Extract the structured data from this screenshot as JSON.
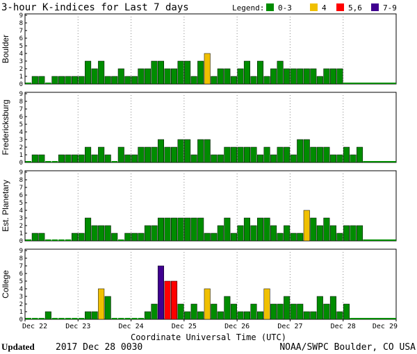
{
  "chart_data": {
    "type": "bar",
    "title": "3-hour K-indices for Last 7 days",
    "legend": {
      "label": "Legend:",
      "placement": "top-right",
      "items": [
        {
          "label": "0-3",
          "color": "#008c00"
        },
        {
          "label": "4",
          "color": "#f0c000"
        },
        {
          "label": "5,6",
          "color": "#ff0000"
        },
        {
          "label": "7-9",
          "color": "#400090"
        }
      ]
    },
    "color_scale": [
      {
        "min": 0,
        "max": 3,
        "color": "#008c00"
      },
      {
        "min": 4,
        "max": 4,
        "color": "#f0c000"
      },
      {
        "min": 5,
        "max": 6,
        "color": "#ff0000"
      },
      {
        "min": 7,
        "max": 9,
        "color": "#400090"
      }
    ],
    "xlabel": "Coordinate Universal Time (UTC)",
    "x_ticks": [
      "Dec 22",
      "Dec 23",
      "Dec 24",
      "Dec 25",
      "Dec 26",
      "Dec 27",
      "Dec 28",
      "Dec 29"
    ],
    "y_ticks": [
      "0",
      "1",
      "2",
      "3",
      "4",
      "5",
      "6",
      "7",
      "8",
      "9"
    ],
    "ylim": [
      0,
      9
    ],
    "intervals_per_day": 8,
    "days": 7,
    "series": [
      {
        "name": "Boulder",
        "values": [
          0,
          1,
          1,
          0,
          1,
          1,
          1,
          1,
          1,
          3,
          2,
          3,
          1,
          1,
          2,
          1,
          1,
          2,
          2,
          3,
          3,
          2,
          2,
          3,
          3,
          1,
          3,
          4,
          1,
          2,
          2,
          1,
          2,
          3,
          1,
          3,
          1,
          2,
          3,
          2,
          2,
          2,
          2,
          2,
          1,
          2,
          2,
          2,
          null,
          null,
          null,
          null,
          null,
          null,
          null,
          null
        ]
      },
      {
        "name": "Fredericksburg",
        "values": [
          0,
          1,
          1,
          0,
          0,
          1,
          1,
          1,
          1,
          2,
          1,
          2,
          1,
          0,
          2,
          1,
          1,
          2,
          2,
          2,
          3,
          2,
          2,
          3,
          3,
          1,
          3,
          3,
          1,
          1,
          2,
          2,
          2,
          2,
          2,
          1,
          2,
          1,
          2,
          2,
          1,
          3,
          3,
          2,
          2,
          2,
          1,
          1,
          2,
          1,
          2,
          null,
          null,
          null,
          null,
          null
        ]
      },
      {
        "name": "Est. Planetary",
        "values": [
          0,
          1,
          1,
          0,
          0,
          0,
          0,
          1,
          1,
          3,
          2,
          2,
          2,
          1,
          0,
          1,
          1,
          1,
          2,
          2,
          3,
          3,
          3,
          3,
          3,
          3,
          3,
          1,
          1,
          2,
          3,
          1,
          2,
          3,
          2,
          3,
          3,
          2,
          1,
          2,
          1,
          1,
          4,
          3,
          2,
          3,
          2,
          1,
          2,
          2,
          2,
          null,
          null,
          null,
          null,
          null
        ]
      },
      {
        "name": "College",
        "values": [
          0,
          0,
          0,
          1,
          0,
          0,
          0,
          0,
          0,
          1,
          1,
          4,
          3,
          0,
          0,
          0,
          0,
          0,
          1,
          2,
          7,
          5,
          5,
          2,
          1,
          2,
          1,
          4,
          2,
          1,
          3,
          2,
          1,
          1,
          2,
          1,
          4,
          2,
          2,
          3,
          2,
          2,
          1,
          1,
          3,
          2,
          3,
          1,
          2,
          null,
          null,
          null,
          null,
          null,
          null,
          null
        ]
      }
    ]
  },
  "footer": {
    "updated_label": "Updated",
    "updated_value": "2017 Dec 28 0030",
    "credit": "NOAA/SWPC Boulder, CO USA"
  }
}
